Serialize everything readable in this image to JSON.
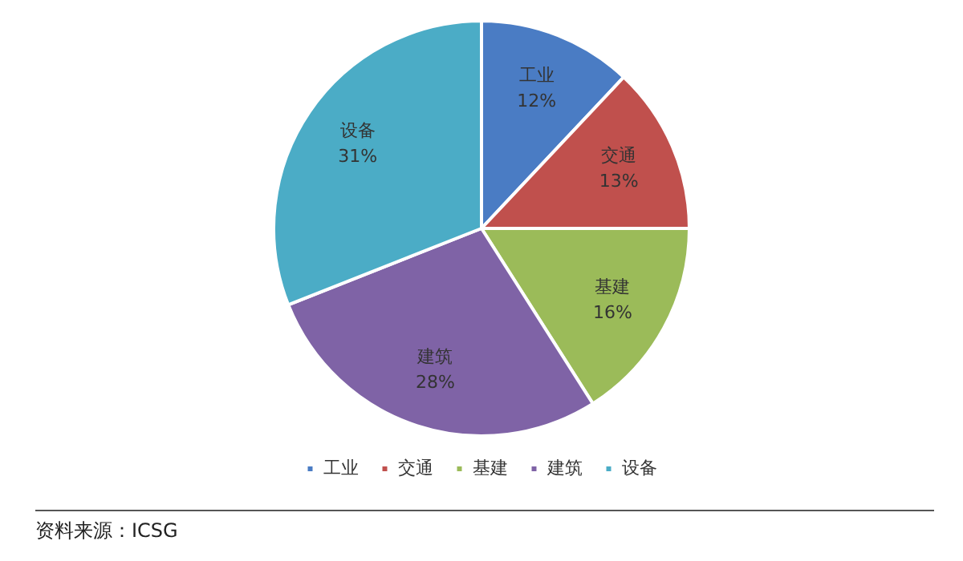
{
  "chart_data": {
    "type": "pie",
    "categories": [
      "工业",
      "交通",
      "基建",
      "建筑",
      "设备"
    ],
    "values": [
      12,
      13,
      16,
      28,
      31
    ],
    "value_labels": [
      "12%",
      "13%",
      "16%",
      "28%",
      "31%"
    ],
    "colors": [
      "#4a7cc4",
      "#c0504d",
      "#9bbb59",
      "#7f63a6",
      "#4bacc6"
    ],
    "legend": "bottom",
    "annotations": [
      "资料来源：ICSG"
    ]
  }
}
